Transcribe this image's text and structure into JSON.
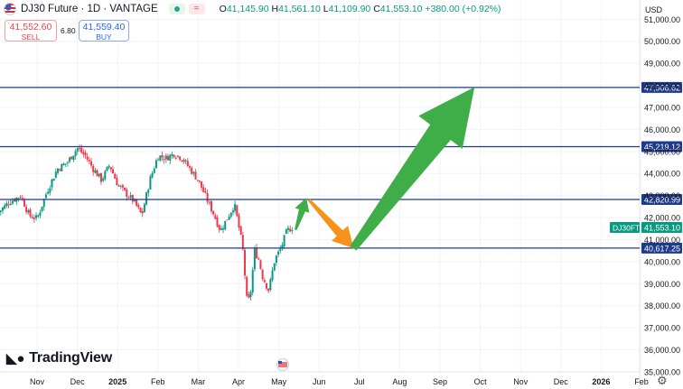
{
  "header": {
    "title": "DJ30 Future · 1D · VANTAGE",
    "ohlc": {
      "o_label": "O",
      "o": "41,145.90",
      "h_label": "H",
      "h": "41,561.10",
      "l_label": "L",
      "l": "41,109.90",
      "c_label": "C",
      "c": "41,553.10",
      "change": "+380.00 (+0.92%)"
    }
  },
  "trade": {
    "sell_price": "41,552.60",
    "sell_label": "SELL",
    "spread": "6.80",
    "buy_price": "41,559.40",
    "buy_label": "BUY"
  },
  "currency": "USD",
  "logo": "TradingView",
  "colors": {
    "up": "#089981",
    "down": "#f23645",
    "level_line": "#1e3a8a",
    "arrow_green": "#3fae49",
    "arrow_orange": "#f7931a",
    "axis_text": "#131722"
  },
  "chart_data": {
    "type": "candlestick",
    "symbol": "DJ30FT",
    "y_range": [
      35000,
      51300
    ],
    "y_ticks": [
      {
        "v": 51000,
        "label": "51,000.00"
      },
      {
        "v": 50000,
        "label": "50,000.00"
      },
      {
        "v": 49000,
        "label": "49,000.00"
      },
      {
        "v": 48000,
        "label": "48,000.00"
      },
      {
        "v": 47000,
        "label": "47,000.00"
      },
      {
        "v": 46000,
        "label": "46,000.00"
      },
      {
        "v": 45000,
        "label": "45,000.00"
      },
      {
        "v": 44000,
        "label": "44,000.00"
      },
      {
        "v": 43000,
        "label": "43,000.00"
      },
      {
        "v": 42000,
        "label": "42,000.00"
      },
      {
        "v": 41000,
        "label": "41,000.00"
      },
      {
        "v": 40000,
        "label": "40,000.00"
      },
      {
        "v": 39000,
        "label": "39,000.00"
      },
      {
        "v": 38000,
        "label": "38,000.00"
      },
      {
        "v": 37000,
        "label": "37,000.00"
      },
      {
        "v": 36000,
        "label": "36,000.00"
      },
      {
        "v": 35000,
        "label": "35,000.00"
      }
    ],
    "x_ticks": [
      {
        "t": 13,
        "label": "Nov"
      },
      {
        "t": 14,
        "label": "Dec"
      },
      {
        "t": 15,
        "label": "2025",
        "bold": true
      },
      {
        "t": 16,
        "label": "Feb"
      },
      {
        "t": 17,
        "label": "Mar"
      },
      {
        "t": 18,
        "label": "Apr"
      },
      {
        "t": 19,
        "label": "May"
      },
      {
        "t": 20,
        "label": "Jun"
      },
      {
        "t": 21,
        "label": "Jul"
      },
      {
        "t": 22,
        "label": "Aug"
      },
      {
        "t": 23,
        "label": "Sep"
      },
      {
        "t": 24,
        "label": "Oct"
      },
      {
        "t": 25,
        "label": "Nov"
      },
      {
        "t": 26,
        "label": "Dec"
      },
      {
        "t": 27,
        "label": "2026",
        "bold": true
      },
      {
        "t": 28,
        "label": "Feb"
      }
    ],
    "levels": [
      {
        "v": 47906.62,
        "label": "47,906.62"
      },
      {
        "v": 45219.12,
        "label": "45,219.12"
      },
      {
        "v": 42820.99,
        "label": "42,820.99"
      },
      {
        "v": 40617.25,
        "label": "40,617.25"
      }
    ],
    "last_price": {
      "v": 41553.1,
      "label": "41,553.10",
      "symbol": "DJ30FT"
    },
    "close_path": [
      [
        12.05,
        42250
      ],
      [
        12.3,
        42700
      ],
      [
        12.6,
        43000
      ],
      [
        12.8,
        42100
      ],
      [
        13.0,
        41950
      ],
      [
        13.25,
        43200
      ],
      [
        13.5,
        44200
      ],
      [
        13.75,
        44500
      ],
      [
        14.0,
        45150
      ],
      [
        14.2,
        44800
      ],
      [
        14.4,
        44200
      ],
      [
        14.6,
        43700
      ],
      [
        14.8,
        44400
      ],
      [
        15.0,
        43500
      ],
      [
        15.2,
        43100
      ],
      [
        15.4,
        42750
      ],
      [
        15.6,
        42100
      ],
      [
        15.8,
        43700
      ],
      [
        16.0,
        44800
      ],
      [
        16.2,
        44700
      ],
      [
        16.4,
        44900
      ],
      [
        16.6,
        44700
      ],
      [
        16.8,
        44200
      ],
      [
        17.0,
        43700
      ],
      [
        17.2,
        42900
      ],
      [
        17.4,
        42100
      ],
      [
        17.55,
        41400
      ],
      [
        17.7,
        41900
      ],
      [
        17.9,
        42600
      ],
      [
        18.1,
        40700
      ],
      [
        18.22,
        38000
      ],
      [
        18.3,
        38600
      ],
      [
        18.4,
        40500
      ],
      [
        18.5,
        40100
      ],
      [
        18.6,
        39300
      ],
      [
        18.75,
        38700
      ],
      [
        18.9,
        40100
      ],
      [
        19.05,
        40600
      ],
      [
        19.2,
        41400
      ],
      [
        19.33,
        41553
      ]
    ],
    "arrows": [
      {
        "kind": "green-small",
        "from": [
          19.42,
          41450
        ],
        "to": [
          19.68,
          42880
        ]
      },
      {
        "kind": "orange",
        "from": [
          19.75,
          42800
        ],
        "to": [
          20.85,
          40620
        ]
      },
      {
        "kind": "green-big",
        "from": [
          20.85,
          40620
        ],
        "to": [
          23.85,
          47906
        ]
      }
    ]
  }
}
